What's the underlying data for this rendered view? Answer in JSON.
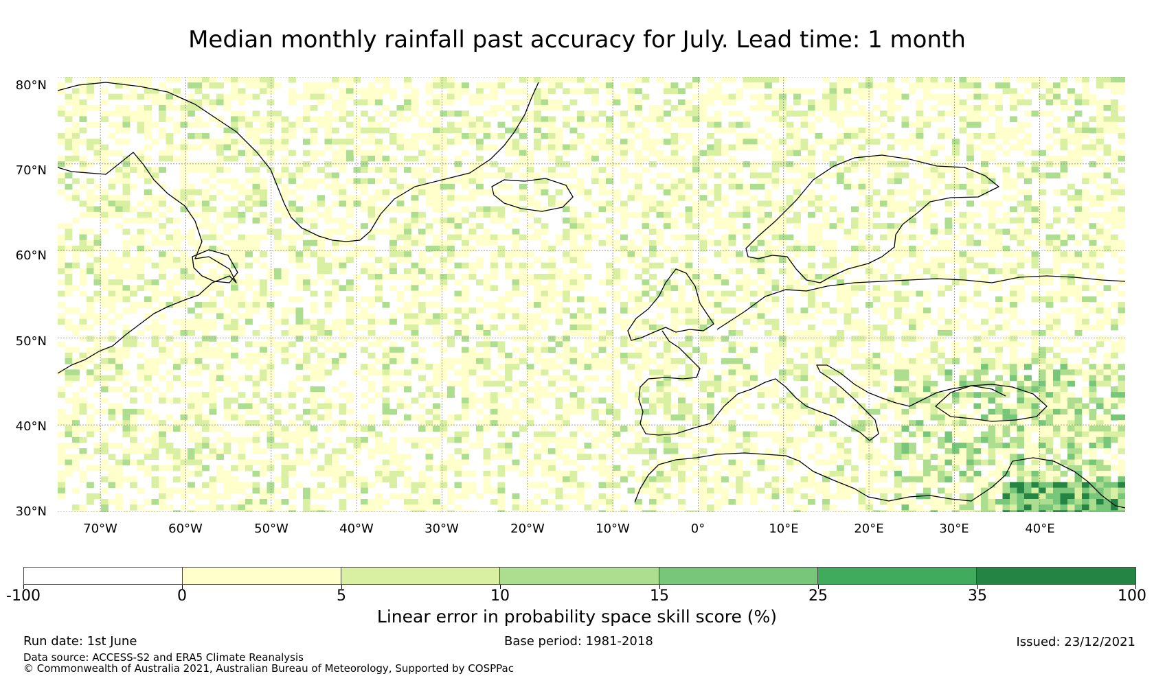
{
  "title": "Median monthly rainfall past accuracy for July. Lead time: 1 month",
  "map": {
    "lon_range": [
      -75,
      50
    ],
    "lat_range": [
      30,
      80
    ],
    "lat_labels": [
      "30°N",
      "40°N",
      "50°N",
      "60°N",
      "70°N",
      "80°N"
    ],
    "lat_values": [
      30,
      40,
      50,
      60,
      70,
      80
    ],
    "lon_labels": [
      "70°W",
      "60°W",
      "50°W",
      "40°W",
      "30°W",
      "20°W",
      "10°W",
      "0°",
      "10°E",
      "20°E",
      "30°E",
      "40°E"
    ],
    "lon_values": [
      -70,
      -60,
      -50,
      -40,
      -30,
      -20,
      -10,
      0,
      10,
      20,
      30,
      40
    ],
    "gridlines": true
  },
  "colorbar": {
    "boundaries": [
      "-100",
      "0",
      "5",
      "10",
      "15",
      "25",
      "35",
      "100"
    ],
    "colors": [
      "#ffffff",
      "#ffffcc",
      "#d9f0a3",
      "#addd8e",
      "#78c679",
      "#41ab5d",
      "#238443"
    ],
    "label": "Linear error in probability space skill score (%)"
  },
  "footer": {
    "run_date": "Run date: 1st June",
    "base_period": "Base period: 1981-2018",
    "issued": "Issued: 23/12/2021",
    "data_source": "Data source: ACCESS-S2 and ERA5 Climate Reanalysis",
    "copyright": "© Commonwealth of Australia 2021, Australian Bureau of Meteorology, Supported by COSPPac"
  }
}
